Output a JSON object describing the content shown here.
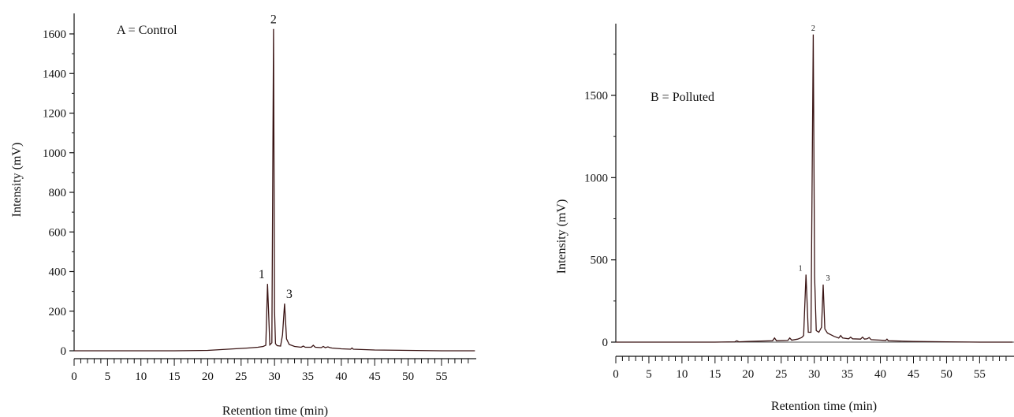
{
  "chart_data": [
    {
      "type": "line",
      "panel_label": "A = Control",
      "xlabel": "Retention time (min)",
      "ylabel": "Intensity (mV)",
      "xlim": [
        0,
        60
      ],
      "ylim": [
        0,
        1650
      ],
      "x_ticks": [
        0,
        5,
        10,
        15,
        20,
        25,
        30,
        35,
        40,
        45,
        50,
        55
      ],
      "y_ticks": [
        0,
        200,
        400,
        600,
        800,
        1000,
        1200,
        1400,
        1600
      ],
      "series": [
        {
          "color": "#3a1414",
          "x": [
            0,
            5,
            10,
            15,
            20,
            22,
            24,
            26,
            27.5,
            28.3,
            28.7,
            28.95,
            29.3,
            29.6,
            29.85,
            30.0,
            30.15,
            30.4,
            30.9,
            31.2,
            31.5,
            31.8,
            32.2,
            33,
            34,
            34.3,
            34.6,
            35.5,
            35.8,
            36.1,
            37,
            37.3,
            37.6,
            38,
            38.3,
            38.6,
            40,
            41.4,
            41.6,
            41.8,
            45,
            50,
            55,
            60
          ],
          "values": [
            0,
            0,
            0,
            0,
            2,
            6,
            10,
            14,
            18,
            22,
            28,
            338,
            30,
            40,
            1625,
            200,
            36,
            26,
            24,
            80,
            238,
            60,
            32,
            22,
            18,
            24,
            18,
            18,
            28,
            18,
            16,
            22,
            16,
            20,
            16,
            14,
            10,
            8,
            14,
            8,
            4,
            2,
            0,
            0
          ]
        }
      ],
      "peak_labels": [
        {
          "label": "1",
          "x": 28.9,
          "y": 338
        },
        {
          "label": "2",
          "x": 29.85,
          "y": 1625
        },
        {
          "label": "3",
          "x": 31.5,
          "y": 238
        }
      ]
    },
    {
      "type": "line",
      "panel_label": "B = Polluted",
      "xlabel": "Retention time (min)",
      "ylabel": "Intensity (mV)",
      "xlim": [
        0,
        60
      ],
      "ylim": [
        0,
        1900
      ],
      "x_ticks": [
        0,
        5,
        10,
        15,
        20,
        25,
        30,
        35,
        40,
        45,
        50,
        55
      ],
      "y_ticks": [
        0,
        500,
        1000,
        1500
      ],
      "series": [
        {
          "color": "#3a1414",
          "x": [
            0,
            5,
            10,
            15,
            18,
            18.3,
            18.6,
            20,
            22,
            23.7,
            24,
            24.3,
            26,
            26.3,
            26.6,
            27.5,
            28.1,
            28.4,
            28.75,
            29.1,
            29.5,
            29.85,
            30.05,
            30.3,
            30.7,
            31.1,
            31.35,
            31.6,
            32,
            33,
            33.7,
            34,
            34.3,
            35.2,
            35.5,
            35.8,
            37,
            37.3,
            37.6,
            38,
            38.3,
            38.6,
            40,
            40.8,
            41,
            41.2,
            43,
            45,
            50,
            55,
            60
          ],
          "values": [
            0,
            0,
            0,
            0,
            2,
            8,
            2,
            4,
            6,
            8,
            25,
            8,
            10,
            25,
            12,
            18,
            28,
            40,
            410,
            60,
            60,
            1870,
            400,
            70,
            60,
            90,
            350,
            80,
            55,
            35,
            25,
            40,
            25,
            20,
            30,
            20,
            18,
            30,
            18,
            20,
            28,
            15,
            12,
            10,
            18,
            8,
            6,
            4,
            2,
            0,
            0
          ]
        }
      ],
      "peak_labels": [
        {
          "label": "1",
          "x": 28.75,
          "y": 410
        },
        {
          "label": "2",
          "x": 29.85,
          "y": 1870
        },
        {
          "label": "3",
          "x": 31.35,
          "y": 350
        }
      ]
    }
  ]
}
